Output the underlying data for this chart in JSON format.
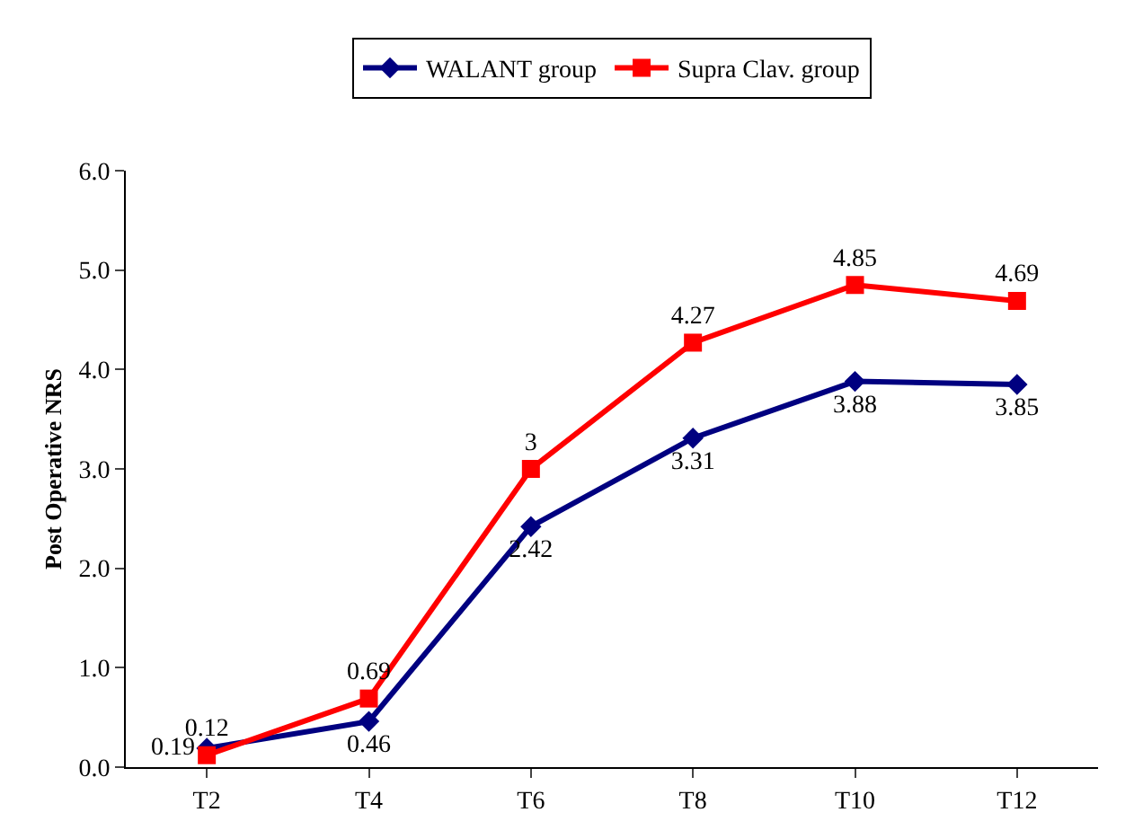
{
  "chart_data": {
    "type": "line",
    "ylabel": "Post Operative NRS",
    "categories": [
      "T2",
      "T4",
      "T6",
      "T8",
      "T10",
      "T12"
    ],
    "series": [
      {
        "name": "WALANT group",
        "color": "#000080",
        "marker": "diamond",
        "values": [
          0.19,
          0.46,
          2.42,
          3.31,
          3.88,
          3.85
        ],
        "value_labels": [
          "0.19",
          "0.46",
          "2.42",
          "3.31",
          "3.88",
          "3.85"
        ]
      },
      {
        "name": "Supra Clav. group",
        "color": "#ff0000",
        "marker": "square",
        "values": [
          0.12,
          0.69,
          3,
          4.27,
          4.85,
          4.69
        ],
        "value_labels": [
          "0.12",
          "0.69",
          "3",
          "4.27",
          "4.85",
          "4.69"
        ]
      }
    ],
    "ylim": [
      0,
      6
    ],
    "yticks": [
      {
        "value": 0,
        "label": "0.0"
      },
      {
        "value": 1,
        "label": "1.0"
      },
      {
        "value": 2,
        "label": "2.0"
      },
      {
        "value": 3,
        "label": "3.0"
      },
      {
        "value": 4,
        "label": "4.0"
      },
      {
        "value": 5,
        "label": "5.0"
      },
      {
        "value": 6,
        "label": "6.0"
      }
    ],
    "grid": false,
    "legend": "top"
  }
}
